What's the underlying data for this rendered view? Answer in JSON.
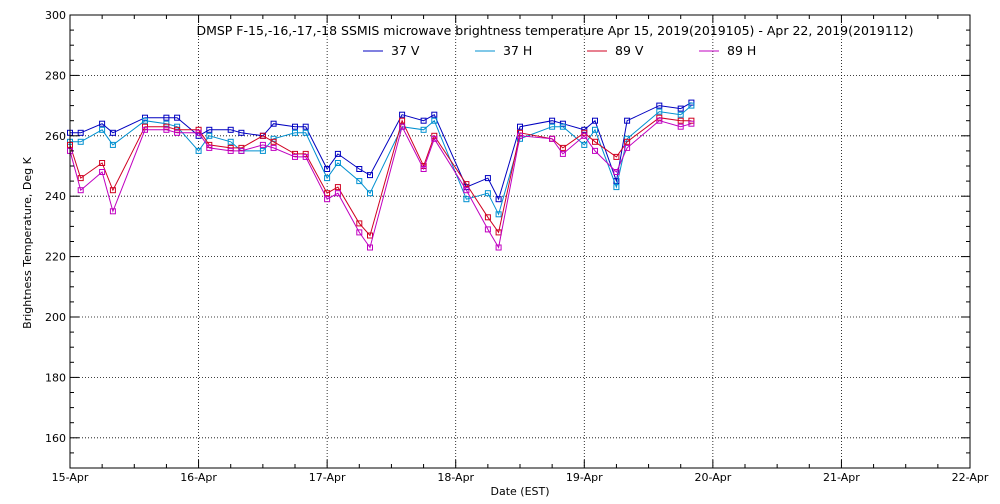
{
  "chart_data": {
    "type": "line",
    "title": "DMSP F-15,-16,-17,-18 SSMIS microwave brightness temperature Apr 15, 2019(2019105) - Apr 22, 2019(2019112)",
    "xlabel": "Date (EST)",
    "ylabel": "Brightness Temperature, Deg K",
    "xlim": [
      "2019-04-15",
      "2019-04-22"
    ],
    "ylim": [
      150,
      300
    ],
    "x_ticks": [
      "15-Apr",
      "16-Apr",
      "17-Apr",
      "18-Apr",
      "19-Apr",
      "20-Apr",
      "21-Apr",
      "22-Apr"
    ],
    "y_ticks": [
      160,
      180,
      200,
      220,
      240,
      260,
      280,
      300
    ],
    "grid": true,
    "legend_position": "top-center",
    "series": [
      {
        "name": "37 V",
        "color": "#0000c0",
        "x": [
          "2019-04-15 00:00",
          "2019-04-15 02:00",
          "2019-04-15 06:00",
          "2019-04-15 08:00",
          "2019-04-15 14:00",
          "2019-04-15 18:00",
          "2019-04-15 20:00",
          "2019-04-16 00:00",
          "2019-04-16 02:00",
          "2019-04-16 06:00",
          "2019-04-16 08:00",
          "2019-04-16 12:00",
          "2019-04-16 14:00",
          "2019-04-16 18:00",
          "2019-04-16 20:00",
          "2019-04-17 00:00",
          "2019-04-17 02:00",
          "2019-04-17 06:00",
          "2019-04-17 08:00",
          "2019-04-17 14:00",
          "2019-04-17 18:00",
          "2019-04-17 20:00",
          "2019-04-18 02:00",
          "2019-04-18 06:00",
          "2019-04-18 08:00",
          "2019-04-18 12:00",
          "2019-04-18 18:00",
          "2019-04-18 20:00",
          "2019-04-19 00:00",
          "2019-04-19 02:00",
          "2019-04-19 06:00",
          "2019-04-19 08:00",
          "2019-04-19 14:00",
          "2019-04-19 18:00",
          "2019-04-19 20:00"
        ],
        "y": [
          261,
          261,
          264,
          261,
          266,
          266,
          266,
          260,
          262,
          262,
          261,
          260,
          264,
          263,
          263,
          249,
          254,
          249,
          247,
          267,
          265,
          267,
          243,
          246,
          239,
          263,
          265,
          264,
          262,
          265,
          245,
          265,
          270,
          269,
          271
        ]
      },
      {
        "name": "37 H",
        "color": "#0090d0",
        "x": [
          "2019-04-15 00:00",
          "2019-04-15 02:00",
          "2019-04-15 06:00",
          "2019-04-15 08:00",
          "2019-04-15 14:00",
          "2019-04-15 18:00",
          "2019-04-15 20:00",
          "2019-04-16 00:00",
          "2019-04-16 02:00",
          "2019-04-16 06:00",
          "2019-04-16 08:00",
          "2019-04-16 12:00",
          "2019-04-16 14:00",
          "2019-04-16 18:00",
          "2019-04-16 20:00",
          "2019-04-17 00:00",
          "2019-04-17 02:00",
          "2019-04-17 06:00",
          "2019-04-17 08:00",
          "2019-04-17 14:00",
          "2019-04-17 18:00",
          "2019-04-17 20:00",
          "2019-04-18 02:00",
          "2019-04-18 06:00",
          "2019-04-18 08:00",
          "2019-04-18 12:00",
          "2019-04-18 18:00",
          "2019-04-18 20:00",
          "2019-04-19 00:00",
          "2019-04-19 02:00",
          "2019-04-19 06:00",
          "2019-04-19 08:00",
          "2019-04-19 14:00",
          "2019-04-19 18:00",
          "2019-04-19 20:00"
        ],
        "y": [
          258,
          258,
          262,
          257,
          265,
          264,
          263,
          255,
          260,
          258,
          255,
          255,
          259,
          261,
          261,
          246,
          251,
          245,
          241,
          263,
          262,
          265,
          239,
          241,
          234,
          259,
          263,
          263,
          257,
          262,
          243,
          259,
          268,
          267,
          270
        ]
      },
      {
        "name": "89 V",
        "color": "#d00020",
        "x": [
          "2019-04-15 00:00",
          "2019-04-15 02:00",
          "2019-04-15 06:00",
          "2019-04-15 08:00",
          "2019-04-15 14:00",
          "2019-04-15 18:00",
          "2019-04-15 20:00",
          "2019-04-16 00:00",
          "2019-04-16 02:00",
          "2019-04-16 06:00",
          "2019-04-16 08:00",
          "2019-04-16 12:00",
          "2019-04-16 14:00",
          "2019-04-16 18:00",
          "2019-04-16 20:00",
          "2019-04-17 00:00",
          "2019-04-17 02:00",
          "2019-04-17 06:00",
          "2019-04-17 08:00",
          "2019-04-17 14:00",
          "2019-04-17 18:00",
          "2019-04-17 20:00",
          "2019-04-18 02:00",
          "2019-04-18 06:00",
          "2019-04-18 08:00",
          "2019-04-18 12:00",
          "2019-04-18 18:00",
          "2019-04-18 20:00",
          "2019-04-19 00:00",
          "2019-04-19 02:00",
          "2019-04-19 06:00",
          "2019-04-19 08:00",
          "2019-04-19 14:00",
          "2019-04-19 18:00",
          "2019-04-19 20:00"
        ],
        "y": [
          257,
          246,
          251,
          242,
          263,
          263,
          262,
          262,
          257,
          256,
          256,
          260,
          258,
          254,
          254,
          241,
          243,
          231,
          227,
          265,
          250,
          260,
          244,
          233,
          228,
          261,
          259,
          256,
          261,
          258,
          253,
          258,
          266,
          265,
          265
        ]
      },
      {
        "name": "89 H",
        "color": "#c000c0",
        "x": [
          "2019-04-15 00:00",
          "2019-04-15 02:00",
          "2019-04-15 06:00",
          "2019-04-15 08:00",
          "2019-04-15 14:00",
          "2019-04-15 18:00",
          "2019-04-15 20:00",
          "2019-04-16 00:00",
          "2019-04-16 02:00",
          "2019-04-16 06:00",
          "2019-04-16 08:00",
          "2019-04-16 12:00",
          "2019-04-16 14:00",
          "2019-04-16 18:00",
          "2019-04-16 20:00",
          "2019-04-17 00:00",
          "2019-04-17 02:00",
          "2019-04-17 06:00",
          "2019-04-17 08:00",
          "2019-04-17 14:00",
          "2019-04-17 18:00",
          "2019-04-17 20:00",
          "2019-04-18 02:00",
          "2019-04-18 06:00",
          "2019-04-18 08:00",
          "2019-04-18 12:00",
          "2019-04-18 18:00",
          "2019-04-18 20:00",
          "2019-04-19 00:00",
          "2019-04-19 02:00",
          "2019-04-19 06:00",
          "2019-04-19 08:00",
          "2019-04-19 14:00",
          "2019-04-19 18:00",
          "2019-04-19 20:00"
        ],
        "y": [
          255,
          242,
          248,
          235,
          262,
          262,
          261,
          261,
          256,
          255,
          255,
          257,
          256,
          253,
          253,
          239,
          241,
          228,
          223,
          263,
          249,
          259,
          242,
          229,
          223,
          260,
          259,
          254,
          260,
          255,
          248,
          256,
          265,
          263,
          264
        ]
      }
    ]
  }
}
